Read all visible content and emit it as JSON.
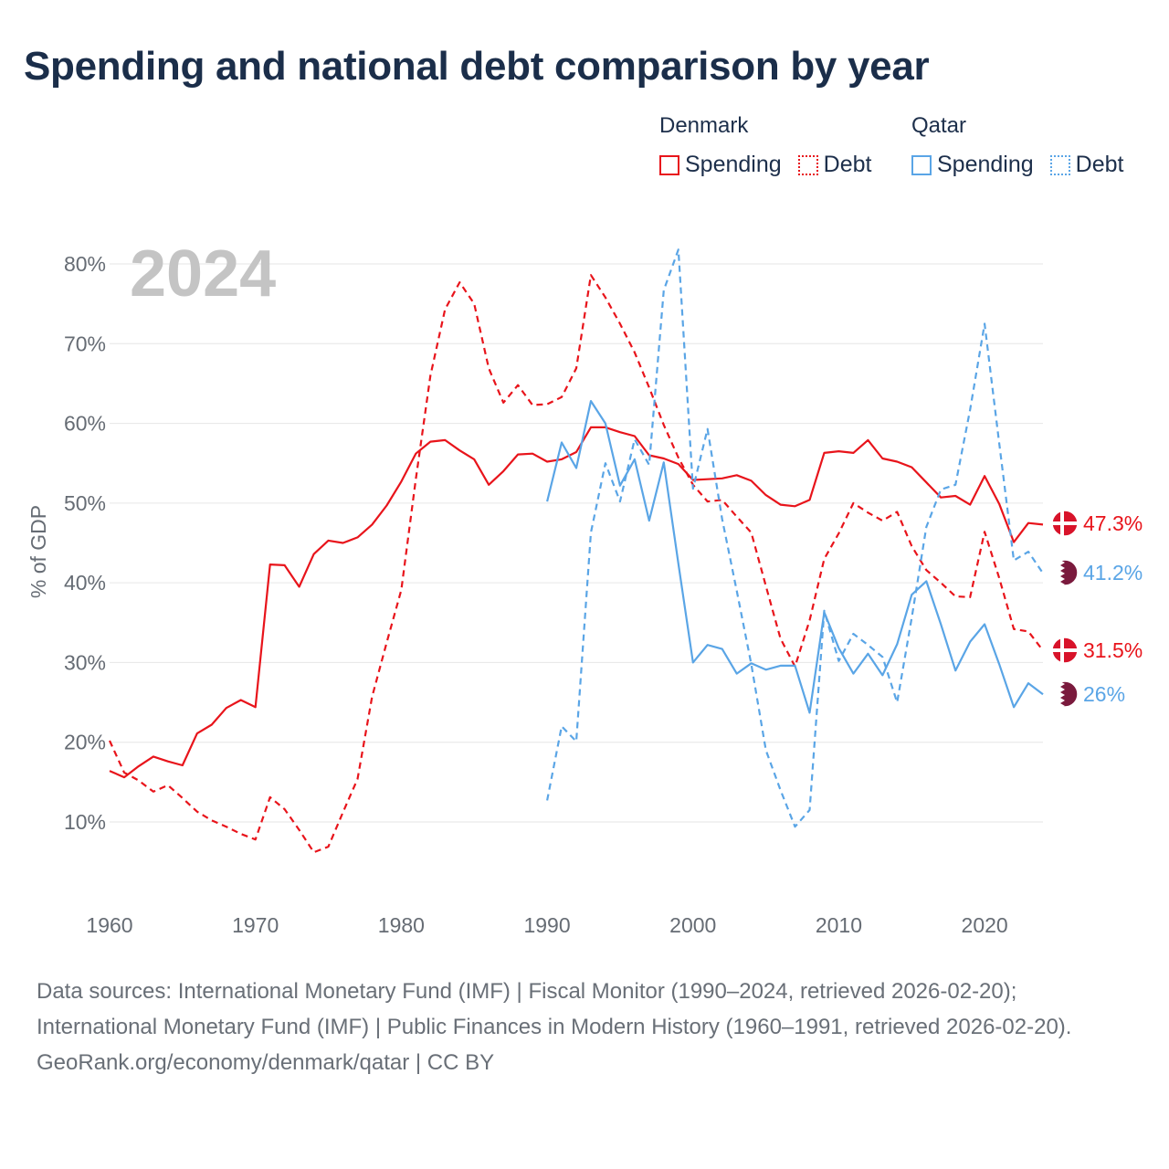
{
  "title": "Spending and national debt comparison by year",
  "legend": {
    "denmark": {
      "country": "Denmark",
      "spending": "Spending",
      "debt": "Debt",
      "color": "#e8141b"
    },
    "qatar": {
      "country": "Qatar",
      "spending": "Spending",
      "debt": "Debt",
      "color": "#5aa5e6"
    }
  },
  "footer": {
    "sources": "Data sources: International Monetary Fund (IMF) | Fiscal Monitor (1990–2024, retrieved 2026-02-20); International Monetary Fund (IMF) | Public Finances in Modern History (1960–1991, retrieved 2026-02-20).",
    "credit": "GeoRank.org/economy/denmark/qatar | CC BY"
  },
  "chart_data": {
    "type": "line",
    "year_label": "2024",
    "ylabel": "% of GDP",
    "xlim": [
      1960,
      2024
    ],
    "ylim": [
      0,
      80
    ],
    "x_ticks": [
      1960,
      1970,
      1980,
      1990,
      2000,
      2010,
      2020
    ],
    "y_ticks": [
      10,
      20,
      30,
      40,
      50,
      60,
      70,
      80
    ],
    "y_tick_labels": [
      "10%",
      "20%",
      "30%",
      "40%",
      "50%",
      "60%",
      "70%",
      "80%"
    ],
    "series": [
      {
        "name": "Denmark Spending",
        "country": "Denmark",
        "color": "#e8141b",
        "dashed": false,
        "end_label": "47.3%",
        "x_start": 1960,
        "values": [
          16.4,
          15.6,
          17.0,
          18.2,
          17.6,
          17.1,
          21.1,
          22.2,
          24.3,
          25.3,
          24.4,
          42.3,
          42.2,
          39.5,
          43.6,
          45.3,
          45.0,
          45.7,
          47.3,
          49.7,
          52.7,
          56.2,
          57.7,
          57.9,
          56.6,
          55.5,
          52.3,
          54.0,
          56.1,
          56.2,
          55.2,
          55.5,
          56.4,
          59.5,
          59.5,
          58.9,
          58.4,
          56.0,
          55.6,
          54.9,
          52.9,
          53.0,
          53.1,
          53.5,
          52.8,
          51.0,
          49.8,
          49.6,
          50.4,
          56.3,
          56.5,
          56.3,
          57.9,
          55.6,
          55.2,
          54.5,
          52.6,
          50.7,
          50.9,
          49.8,
          53.4,
          49.9,
          45.1,
          47.5,
          47.3
        ]
      },
      {
        "name": "Denmark Debt",
        "country": "Denmark",
        "color": "#e8141b",
        "dashed": true,
        "end_label": "31.5%",
        "x_start": 1960,
        "values": [
          20.2,
          16.2,
          15.2,
          13.8,
          14.6,
          13.0,
          11.3,
          10.2,
          9.4,
          8.5,
          7.8,
          13.1,
          11.6,
          9.0,
          6.2,
          6.9,
          11.2,
          15.4,
          25.7,
          32.5,
          39.1,
          53.0,
          66.0,
          74.3,
          77.7,
          75.0,
          66.9,
          62.6,
          64.8,
          62.3,
          62.4,
          63.3,
          66.9,
          78.6,
          75.8,
          72.5,
          68.9,
          64.5,
          59.8,
          55.7,
          52.3,
          50.2,
          50.4,
          48.3,
          46.3,
          39.6,
          33.0,
          29.5,
          35.3,
          43.0,
          46.2,
          50.0,
          48.8,
          47.8,
          48.9,
          44.6,
          41.6,
          40.0,
          38.3,
          38.2,
          46.4,
          40.6,
          34.2,
          33.9,
          31.5
        ]
      },
      {
        "name": "Qatar Spending",
        "country": "Qatar",
        "color": "#5aa5e6",
        "dashed": false,
        "end_label": "26%",
        "x_start": 1990,
        "values": [
          50.2,
          57.6,
          54.4,
          62.8,
          60.0,
          52.2,
          55.5,
          47.8,
          55.1,
          42.4,
          30.0,
          32.2,
          31.7,
          28.6,
          29.9,
          29.1,
          29.6,
          29.6,
          23.7,
          36.3,
          31.8,
          28.6,
          31.1,
          28.4,
          32.3,
          38.5,
          40.2,
          34.8,
          29.0,
          32.6,
          34.8,
          29.8,
          24.4,
          27.4,
          26.0
        ]
      },
      {
        "name": "Qatar Debt",
        "country": "Qatar",
        "color": "#5aa5e6",
        "dashed": true,
        "end_label": "41.2%",
        "x_start": 1990,
        "values": [
          12.7,
          22.0,
          20.1,
          46.3,
          55.0,
          50.2,
          58.0,
          54.8,
          76.7,
          81.8,
          51.8,
          59.3,
          48.0,
          39.0,
          29.8,
          19.0,
          14.0,
          9.4,
          11.5,
          36.5,
          30.2,
          33.6,
          32.2,
          30.7,
          25.0,
          35.6,
          47.0,
          51.7,
          52.3,
          61.7,
          72.5,
          57.5,
          42.8,
          43.9,
          41.2
        ]
      }
    ]
  }
}
